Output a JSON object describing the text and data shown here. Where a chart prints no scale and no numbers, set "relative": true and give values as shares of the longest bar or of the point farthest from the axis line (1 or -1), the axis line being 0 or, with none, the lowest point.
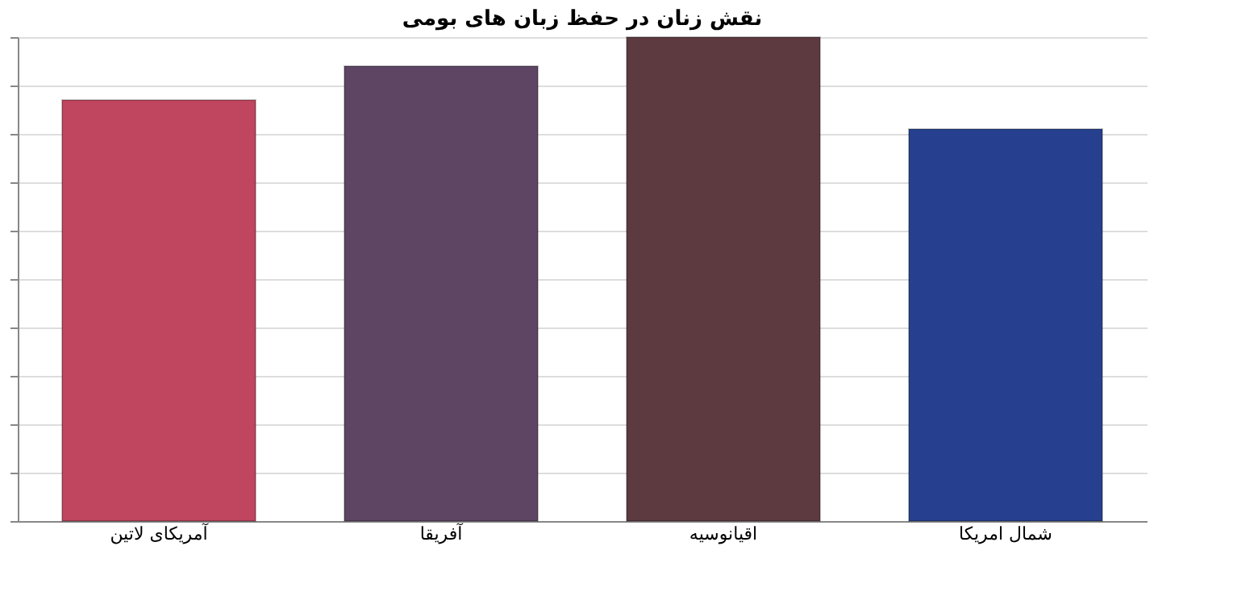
{
  "chart_data": {
    "type": "bar",
    "title": "نقش زنان در حفظ زبان های بومی",
    "categories": [
      "آمریکای لاتین",
      "آفریقا",
      "اقیانوسیه",
      "شمال امریکا"
    ],
    "values": [
      0.87,
      0.94,
      1,
      0.81
    ],
    "colors": [
      "#c0455f",
      "#5e4563",
      "#5c3a40",
      "#26408f"
    ],
    "relative": true,
    "grid": "y"
  }
}
